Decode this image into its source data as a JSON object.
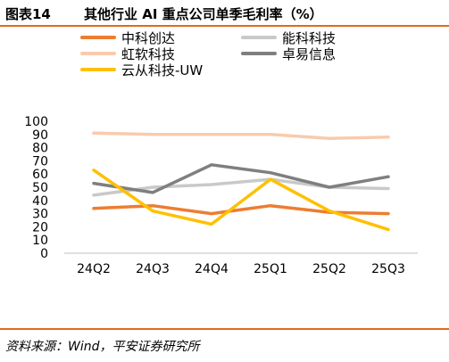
{
  "header": {
    "figure_no": "图表14",
    "title": "其他行业 AI 重点公司单季毛利率（%）"
  },
  "source": "资料来源：Wind，平安证券研究所",
  "chart_data": {
    "type": "line",
    "categories": [
      "24Q2",
      "24Q3",
      "24Q4",
      "25Q1",
      "25Q2",
      "25Q3"
    ],
    "ylim": [
      0,
      100
    ],
    "yticks": [
      0,
      10,
      20,
      30,
      40,
      50,
      60,
      70,
      80,
      90,
      100
    ],
    "grid": false,
    "legend_position": "top",
    "series": [
      {
        "name": "中科创达",
        "color": "#ed7d31",
        "values": [
          34,
          36,
          30,
          36,
          31,
          30
        ]
      },
      {
        "name": "能科科技",
        "color": "#c9c9c9",
        "values": [
          44,
          50,
          52,
          56,
          50,
          49
        ]
      },
      {
        "name": "虹软科技",
        "color": "#f8cbad",
        "values": [
          91,
          90,
          90,
          90,
          87,
          88
        ]
      },
      {
        "name": "卓易信息",
        "color": "#7f7f7f",
        "values": [
          53,
          46,
          67,
          61,
          50,
          58
        ]
      },
      {
        "name": "云从科技-UW",
        "color": "#ffc000",
        "values": [
          63,
          32,
          22,
          56,
          32,
          18
        ]
      }
    ]
  }
}
